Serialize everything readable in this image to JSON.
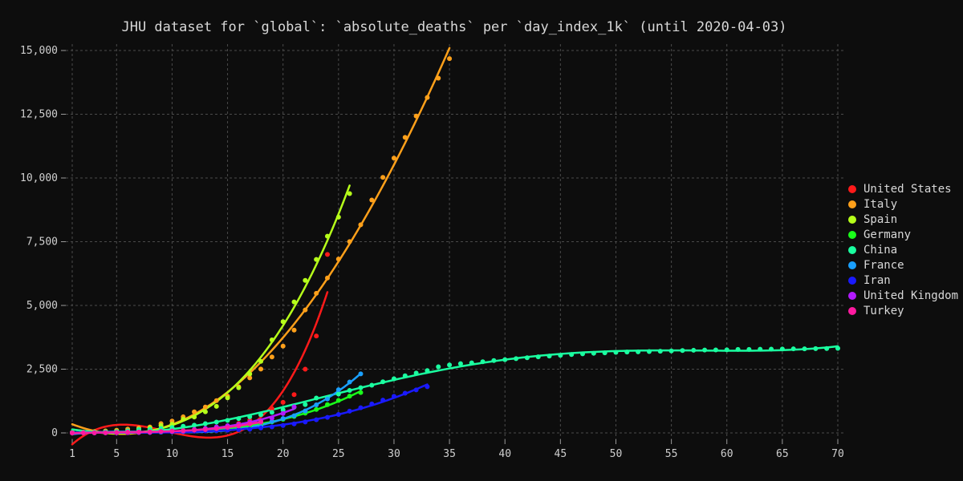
{
  "chart_data": {
    "type": "scatter",
    "title": "JHU dataset for `global`: `absolute_deaths` per `day_index_1k` (until 2020-04-03)",
    "xlabel": "",
    "ylabel": "",
    "xlim": [
      1,
      70
    ],
    "ylim": [
      0,
      15000
    ],
    "x_ticks": [
      1,
      5,
      10,
      15,
      20,
      25,
      30,
      35,
      40,
      45,
      50,
      55,
      60,
      65,
      70
    ],
    "y_ticks": [
      0,
      2500,
      5000,
      7500,
      10000,
      12500,
      15000
    ],
    "y_tick_labels": [
      "0",
      "2,500",
      "5,000",
      "7,500",
      "10,000",
      "12,500",
      "15,000"
    ],
    "grid": true,
    "legend_position": "right",
    "series": [
      {
        "name": "United States",
        "color": "#ff1a1a",
        "x": [
          1,
          2,
          3,
          4,
          5,
          6,
          7,
          8,
          9,
          10,
          11,
          12,
          13,
          14,
          15,
          16,
          17,
          18,
          19,
          20,
          21,
          22,
          23,
          24
        ],
        "y": [
          2,
          3,
          6,
          10,
          12,
          17,
          22,
          30,
          40,
          50,
          68,
          100,
          140,
          180,
          260,
          370,
          500,
          700,
          950,
          1200,
          1500,
          2500,
          3800,
          7000
        ]
      },
      {
        "name": "Italy",
        "color": "#ffa01a",
        "x": [
          1,
          2,
          3,
          4,
          5,
          6,
          7,
          8,
          9,
          10,
          11,
          12,
          13,
          14,
          15,
          16,
          17,
          18,
          19,
          20,
          21,
          22,
          23,
          24,
          25,
          26,
          27,
          28,
          29,
          30,
          31,
          32,
          33,
          34,
          35
        ],
        "y": [
          21,
          29,
          52,
          79,
          107,
          148,
          197,
          233,
          366,
          463,
          631,
          827,
          1016,
          1266,
          1441,
          1809,
          2158,
          2503,
          2978,
          3405,
          4032,
          4825,
          5476,
          6077,
          6820,
          7503,
          8165,
          9134,
          10023,
          10779,
          11591,
          12428,
          13155,
          13915,
          14681
        ]
      },
      {
        "name": "Spain",
        "color": "#b6ff1a",
        "x": [
          1,
          2,
          3,
          4,
          5,
          6,
          7,
          8,
          9,
          10,
          11,
          12,
          13,
          14,
          15,
          16,
          17,
          18,
          19,
          20,
          21,
          22,
          23,
          24,
          25,
          26
        ],
        "y": [
          10,
          17,
          28,
          35,
          54,
          55,
          133,
          195,
          289,
          342,
          533,
          623,
          830,
          1043,
          1375,
          1772,
          2311,
          2808,
          3647,
          4365,
          5138,
          5982,
          6803,
          7716,
          8464,
          9387
        ]
      },
      {
        "name": "Germany",
        "color": "#1aff1a",
        "x": [
          1,
          2,
          3,
          4,
          5,
          6,
          7,
          8,
          9,
          10,
          11,
          12,
          13,
          14,
          15,
          16,
          17,
          18,
          19,
          20,
          21,
          22,
          23,
          24,
          25,
          26,
          27
        ],
        "y": [
          2,
          3,
          3,
          7,
          9,
          11,
          17,
          24,
          28,
          44,
          67,
          84,
          94,
          123,
          157,
          206,
          267,
          342,
          433,
          533,
          645,
          775,
          920,
          1107,
          1275,
          1444,
          1584
        ]
      },
      {
        "name": "China",
        "color": "#1affa0",
        "x": [
          1,
          2,
          3,
          4,
          5,
          6,
          7,
          8,
          9,
          10,
          11,
          12,
          13,
          14,
          15,
          16,
          17,
          18,
          19,
          20,
          21,
          22,
          23,
          24,
          25,
          26,
          27,
          28,
          29,
          30,
          31,
          32,
          33,
          34,
          35,
          36,
          37,
          38,
          39,
          40,
          41,
          42,
          43,
          44,
          45,
          46,
          47,
          48,
          49,
          50,
          51,
          52,
          53,
          54,
          55,
          56,
          57,
          58,
          59,
          60,
          61,
          62,
          63,
          64,
          65,
          66,
          67,
          68,
          69,
          70
        ],
        "y": [
          17,
          18,
          26,
          42,
          56,
          82,
          131,
          133,
          171,
          213,
          259,
          304,
          361,
          425,
          490,
          562,
          632,
          717,
          804,
          904,
          1011,
          1112,
          1367,
          1381,
          1524,
          1666,
          1772,
          1870,
          2006,
          2121,
          2239,
          2348,
          2445,
          2595,
          2665,
          2717,
          2746,
          2790,
          2837,
          2872,
          2914,
          2947,
          2983,
          3015,
          3044,
          3072,
          3100,
          3123,
          3139,
          3161,
          3172,
          3180,
          3193,
          3203,
          3217,
          3230,
          3241,
          3249,
          3253,
          3259,
          3274,
          3274,
          3281,
          3285,
          3291,
          3296,
          3299,
          3304,
          3308,
          3316
        ]
      },
      {
        "name": "France",
        "color": "#1aa0ff",
        "x": [
          1,
          2,
          3,
          4,
          5,
          6,
          7,
          8,
          9,
          10,
          11,
          12,
          13,
          14,
          15,
          16,
          17,
          18,
          19,
          20,
          21,
          22,
          23,
          24,
          25,
          26,
          27
        ],
        "y": [
          2,
          3,
          4,
          7,
          9,
          11,
          19,
          19,
          33,
          48,
          48,
          79,
          91,
          91,
          148,
          148,
          148,
          243,
          450,
          562,
          674,
          860,
          1100,
          1331,
          1696,
          1995,
          2314
        ]
      },
      {
        "name": "Iran",
        "color": "#1a1aff",
        "x": [
          1,
          2,
          3,
          4,
          5,
          6,
          7,
          8,
          9,
          10,
          11,
          12,
          13,
          14,
          15,
          16,
          17,
          18,
          19,
          20,
          21,
          22,
          23,
          24,
          25,
          26,
          27,
          28,
          29,
          30,
          31,
          32,
          33
        ],
        "y": [
          2,
          4,
          5,
          8,
          12,
          16,
          19,
          26,
          34,
          43,
          54,
          66,
          77,
          92,
          107,
          124,
          145,
          194,
          237,
          291,
          354,
          429,
          514,
          611,
          724,
          853,
          988,
          1135,
          1284,
          1433,
          1556,
          1685,
          1812
        ]
      },
      {
        "name": "United Kingdom",
        "color": "#b31aff",
        "x": [
          1,
          2,
          3,
          4,
          5,
          6,
          7,
          8,
          9,
          10,
          11,
          12,
          13,
          14,
          15,
          16,
          17,
          18,
          19,
          20,
          21
        ],
        "y": [
          1,
          2,
          2,
          3,
          7,
          10,
          21,
          21,
          56,
          56,
          72,
          138,
          178,
          234,
          282,
          336,
          423,
          466,
          580,
          761,
          1021
        ]
      },
      {
        "name": "Turkey",
        "color": "#ff1aa0",
        "x": [
          1,
          2,
          3,
          4,
          5,
          6,
          7,
          8,
          9,
          10,
          11,
          12,
          13,
          14,
          15,
          16,
          17,
          18
        ],
        "y": [
          1,
          2,
          4,
          9,
          21,
          30,
          37,
          44,
          59,
          75,
          92,
          108,
          131,
          168,
          214,
          277,
          356,
          425
        ]
      }
    ]
  }
}
